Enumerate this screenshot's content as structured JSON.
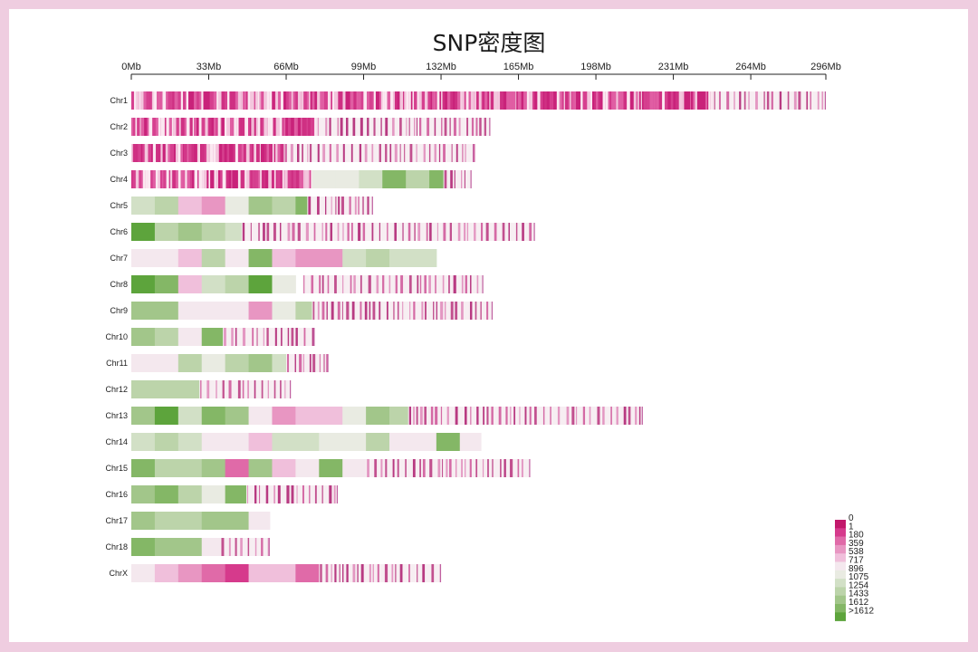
{
  "chart_data": {
    "type": "heatmap",
    "title": "SNP密度图",
    "xlabel": "",
    "ylabel": "",
    "x_unit": "Mb",
    "xlim": [
      0,
      296
    ],
    "bin_size_mb": 10,
    "x_ticks": [
      "0Mb",
      "33Mb",
      "66Mb",
      "99Mb",
      "132Mb",
      "165Mb",
      "198Mb",
      "231Mb",
      "264Mb",
      "296Mb"
    ],
    "x_tick_values": [
      0,
      33,
      66,
      99,
      132,
      165,
      198,
      231,
      264,
      296
    ],
    "legend": {
      "placement": "bottom-right",
      "labels": [
        "0",
        "1",
        "180",
        "359",
        "538",
        "717",
        "896",
        "1075",
        "1254",
        "1433",
        "1612",
        ">1612"
      ],
      "colors": [
        "#c2186b",
        "#d63a8c",
        "#e06aa8",
        "#e896c2",
        "#f0bfdb",
        "#f4e8ee",
        "#e9ebe2",
        "#d2e0c6",
        "#bcd4aa",
        "#a2c68a",
        "#84b766",
        "#5da43c"
      ]
    },
    "stripe_colors": {
      "dense": [
        "#c9227a",
        "#d6408f",
        "#e05ea3",
        "#cf3083",
        "#f3c6dd",
        "#fbe8f1"
      ],
      "sparse_bg": "#f7eef2",
      "sparse_lines": [
        "#b83a82",
        "#d46aa5",
        "#e397c2",
        "#c2508f"
      ]
    },
    "chromosomes": [
      {
        "name": "Chr1",
        "length": 296,
        "bins": [],
        "dense_until": 248,
        "sparse_from": 248
      },
      {
        "name": "Chr2",
        "length": 153,
        "bins": [],
        "dense_until": 79,
        "sparse_from": 79
      },
      {
        "name": "Chr3",
        "length": 146,
        "bins": [],
        "dense_until": 65,
        "sparse_from": 65
      },
      {
        "name": "Chr4",
        "length": 145,
        "bins": [],
        "dense_until": 77,
        "levels_from": 77,
        "levels": [
          6,
          6,
          7,
          10,
          8,
          10
        ],
        "sparse_from": 133
      },
      {
        "name": "Chr5",
        "length": 103,
        "bins": [
          7,
          8,
          4,
          3,
          6,
          9,
          8,
          10
        ],
        "sparse_from": 75
      },
      {
        "name": "Chr6",
        "length": 172,
        "bins": [
          11,
          8,
          9,
          8,
          7
        ],
        "sparse_from": 47
      },
      {
        "name": "Chr7",
        "length": 134,
        "bins": [
          5,
          5,
          4,
          8,
          5,
          10,
          4,
          3,
          3,
          7,
          8,
          7,
          7
        ],
        "sparse_from": 134
      },
      {
        "name": "Chr8",
        "length": 150,
        "bins": [
          11,
          10,
          4,
          7,
          8,
          11,
          6
        ],
        "sparse_from": 73
      },
      {
        "name": "Chr9",
        "length": 154,
        "bins": [
          9,
          9,
          5,
          5,
          5,
          3,
          6,
          8
        ],
        "sparse_from": 77
      },
      {
        "name": "Chr10",
        "length": 78,
        "bins": [
          9,
          8,
          5,
          10
        ],
        "sparse_from": 39
      },
      {
        "name": "Chr11",
        "length": 84,
        "bins": [
          5,
          5,
          8,
          6,
          8,
          9,
          7
        ],
        "sparse_from": 66
      },
      {
        "name": "Chr12",
        "length": 68,
        "bins": [
          8,
          8,
          8
        ],
        "sparse_from": 29
      },
      {
        "name": "Chr13",
        "length": 218,
        "bins": [
          9,
          11,
          7,
          10,
          9,
          5,
          3,
          4,
          4,
          6,
          9,
          8
        ],
        "sparse_from": 118
      },
      {
        "name": "Chr14",
        "length": 149,
        "bins": [
          7,
          8,
          7,
          5,
          5,
          4,
          7,
          7,
          6,
          6,
          8,
          5,
          5,
          10,
          5
        ],
        "sparse_from": 149
      },
      {
        "name": "Chr15",
        "length": 170,
        "bins": [
          10,
          8,
          8,
          9,
          2,
          9,
          4,
          5,
          10,
          5
        ],
        "sparse_from": 100
      },
      {
        "name": "Chr16",
        "length": 88,
        "bins": [
          9,
          10,
          8,
          6,
          10
        ],
        "sparse_from": 49
      },
      {
        "name": "Chr17",
        "length": 59,
        "bins": [
          9,
          8,
          8,
          9,
          9,
          5
        ],
        "sparse_from": 59
      },
      {
        "name": "Chr18",
        "length": 59,
        "bins": [
          10,
          9,
          9,
          5
        ],
        "sparse_from": 38
      },
      {
        "name": "ChrX",
        "length": 132,
        "bins": [
          5,
          4,
          3,
          2,
          1,
          4,
          4,
          2
        ],
        "sparse_from": 80
      }
    ]
  }
}
